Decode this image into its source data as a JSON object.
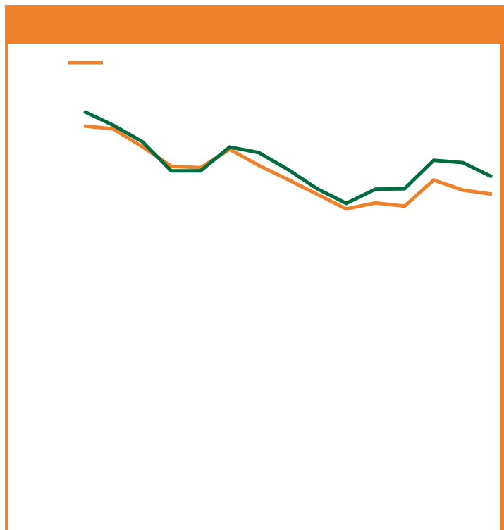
{
  "chart_data": {
    "type": "line",
    "categories": [
      null,
      null,
      null,
      null,
      null,
      null,
      null,
      null,
      null,
      null,
      null,
      null,
      null,
      null,
      null
    ],
    "series": [
      {
        "color": "#f0812b",
        "values": [
          88.3,
          87.7,
          83.8,
          79.5,
          79.2,
          83.2,
          79.7,
          76.6,
          73.4,
          70.2,
          71.5,
          70.8,
          76.5,
          74.3,
          73.4
        ]
      },
      {
        "color": "#006b3f",
        "values": [
          91.5,
          88.5,
          84.9,
          78.5,
          78.5,
          83.7,
          82.5,
          78.8,
          74.6,
          71.4,
          74.5,
          74.6,
          80.8,
          80.3,
          77.2
        ]
      }
    ],
    "ylim": [
      0,
      100
    ]
  }
}
